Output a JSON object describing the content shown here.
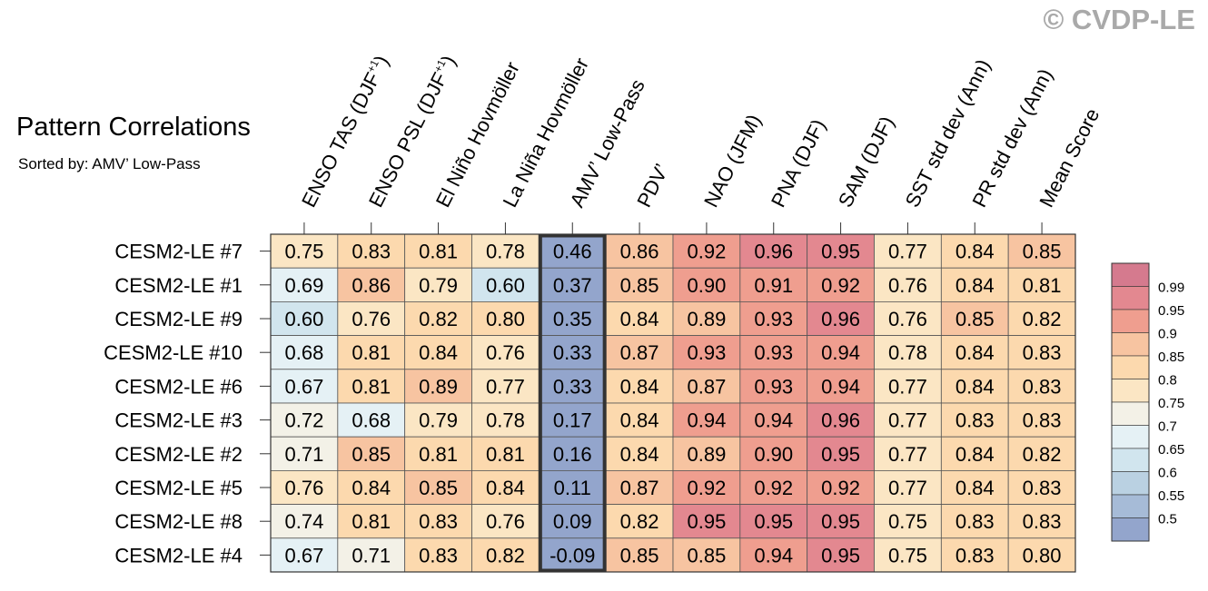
{
  "watermark": "© CVDP-LE",
  "chart_data": {
    "type": "heatmap",
    "title": "Pattern Correlations",
    "subtitle": "Sorted by: AMV’ Low-Pass",
    "columns": [
      {
        "label": "ENSO TAS (DJF",
        "sup": "+1",
        "suffix": ")"
      },
      {
        "label": "ENSO PSL (DJF",
        "sup": "+1",
        "suffix": ")"
      },
      {
        "label": "El Niño Hovmöller"
      },
      {
        "label": "La Niña Hovmöller"
      },
      {
        "label": "AMV’ Low-Pass"
      },
      {
        "label": "PDV’"
      },
      {
        "label": "NAO (JFM)"
      },
      {
        "label": "PNA (DJF)"
      },
      {
        "label": "SAM (DJF)"
      },
      {
        "label": "SST std dev (Ann)"
      },
      {
        "label": "PR std dev (Ann)"
      },
      {
        "label": "Mean Score"
      }
    ],
    "highlight_column": 4,
    "rows": [
      "CESM2-LE #7",
      "CESM2-LE #1",
      "CESM2-LE #9",
      "CESM2-LE #10",
      "CESM2-LE #6",
      "CESM2-LE #3",
      "CESM2-LE #2",
      "CESM2-LE #5",
      "CESM2-LE #8",
      "CESM2-LE #4"
    ],
    "values": [
      [
        "0.75",
        "0.83",
        "0.81",
        "0.78",
        "0.46",
        "0.86",
        "0.92",
        "0.96",
        "0.95",
        "0.77",
        "0.84",
        "0.85"
      ],
      [
        "0.69",
        "0.86",
        "0.79",
        "0.60",
        "0.37",
        "0.85",
        "0.90",
        "0.91",
        "0.92",
        "0.76",
        "0.84",
        "0.81"
      ],
      [
        "0.60",
        "0.76",
        "0.82",
        "0.80",
        "0.35",
        "0.84",
        "0.89",
        "0.93",
        "0.96",
        "0.76",
        "0.85",
        "0.82"
      ],
      [
        "0.68",
        "0.81",
        "0.84",
        "0.76",
        "0.33",
        "0.87",
        "0.93",
        "0.93",
        "0.94",
        "0.78",
        "0.84",
        "0.83"
      ],
      [
        "0.67",
        "0.81",
        "0.89",
        "0.77",
        "0.33",
        "0.84",
        "0.87",
        "0.93",
        "0.94",
        "0.77",
        "0.84",
        "0.83"
      ],
      [
        "0.72",
        "0.68",
        "0.79",
        "0.78",
        "0.17",
        "0.84",
        "0.94",
        "0.94",
        "0.96",
        "0.77",
        "0.83",
        "0.83"
      ],
      [
        "0.71",
        "0.85",
        "0.81",
        "0.81",
        "0.16",
        "0.84",
        "0.89",
        "0.90",
        "0.95",
        "0.77",
        "0.84",
        "0.82"
      ],
      [
        "0.76",
        "0.84",
        "0.85",
        "0.84",
        "0.11",
        "0.87",
        "0.92",
        "0.92",
        "0.92",
        "0.77",
        "0.84",
        "0.83"
      ],
      [
        "0.74",
        "0.81",
        "0.83",
        "0.76",
        "0.09",
        "0.82",
        "0.95",
        "0.95",
        "0.95",
        "0.75",
        "0.83",
        "0.83"
      ],
      [
        "0.67",
        "0.71",
        "0.83",
        "0.82",
        "-0.09",
        "0.85",
        "0.85",
        "0.94",
        "0.95",
        "0.75",
        "0.83",
        "0.80"
      ]
    ],
    "colorbar": {
      "labels": [
        "0.99",
        "0.95",
        "0.9",
        "0.85",
        "0.8",
        "0.75",
        "0.7",
        "0.65",
        "0.6",
        "0.55",
        "0.5"
      ],
      "thresholds": [
        0.5,
        0.55,
        0.6,
        0.65,
        0.7,
        0.75,
        0.8,
        0.85,
        0.9,
        0.95,
        0.99
      ],
      "colors": [
        "#93a5cc",
        "#a6bbd7",
        "#bad1e2",
        "#d1e5ee",
        "#e5f1f5",
        "#f3f1e7",
        "#fbe6c4",
        "#fcd9ae",
        "#f7c4a1",
        "#ef9e8f",
        "#e38890",
        "#d57a8e"
      ]
    }
  }
}
